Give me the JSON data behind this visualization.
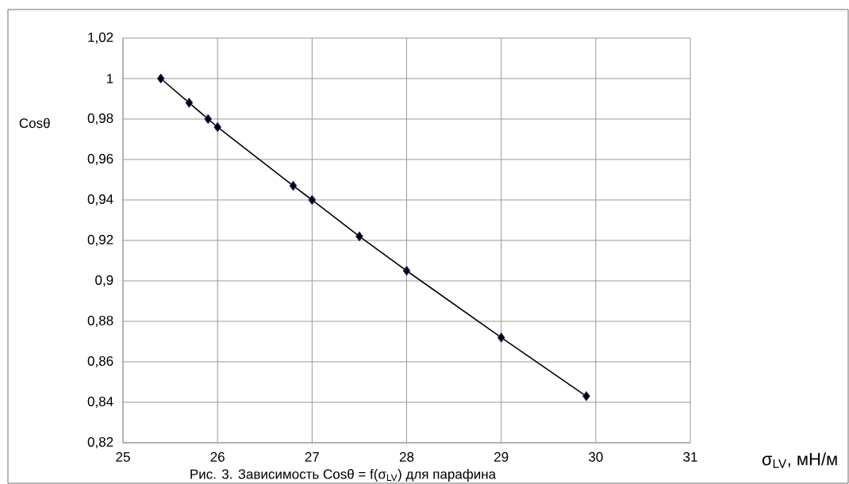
{
  "chart_data": {
    "type": "line",
    "xlabel": "σ$_{LV}$, мН/м",
    "ylabel": "Cosθ",
    "annotations": [
      "Рис. 3.  Зависимость Cosθ = f(σ$_{LV}$)  для  парафина"
    ],
    "x": [
      25.4,
      25.7,
      25.9,
      26.0,
      26.8,
      27.0,
      27.5,
      28.0,
      29.0,
      29.9
    ],
    "series": [
      {
        "color": "#000000",
        "values": [
          1.0,
          0.988,
          0.98,
          0.976,
          0.947,
          0.94,
          0.922,
          0.905,
          0.872,
          0.843
        ]
      }
    ],
    "xlim": [
      25,
      31
    ],
    "xticks": [
      25,
      26,
      27,
      28,
      29,
      30,
      31
    ],
    "ylim": [
      0.82,
      1.02
    ],
    "yticks": [
      {
        "value": 0.82,
        "label": "0,82"
      },
      {
        "value": 0.84,
        "label": "0,84"
      },
      {
        "value": 0.86,
        "label": "0,86"
      },
      {
        "value": 0.88,
        "label": "0,88"
      },
      {
        "value": 0.9,
        "label": "0,9"
      },
      {
        "value": 0.92,
        "label": "0,92"
      },
      {
        "value": 0.94,
        "label": "0,94"
      },
      {
        "value": 0.96,
        "label": "0,96"
      },
      {
        "value": 0.98,
        "label": "0,98"
      },
      {
        "value": 1.0,
        "label": "1"
      },
      {
        "value": 1.02,
        "label": "1,02"
      }
    ],
    "grid": true,
    "marker": "diamond",
    "line_style": "solid"
  }
}
